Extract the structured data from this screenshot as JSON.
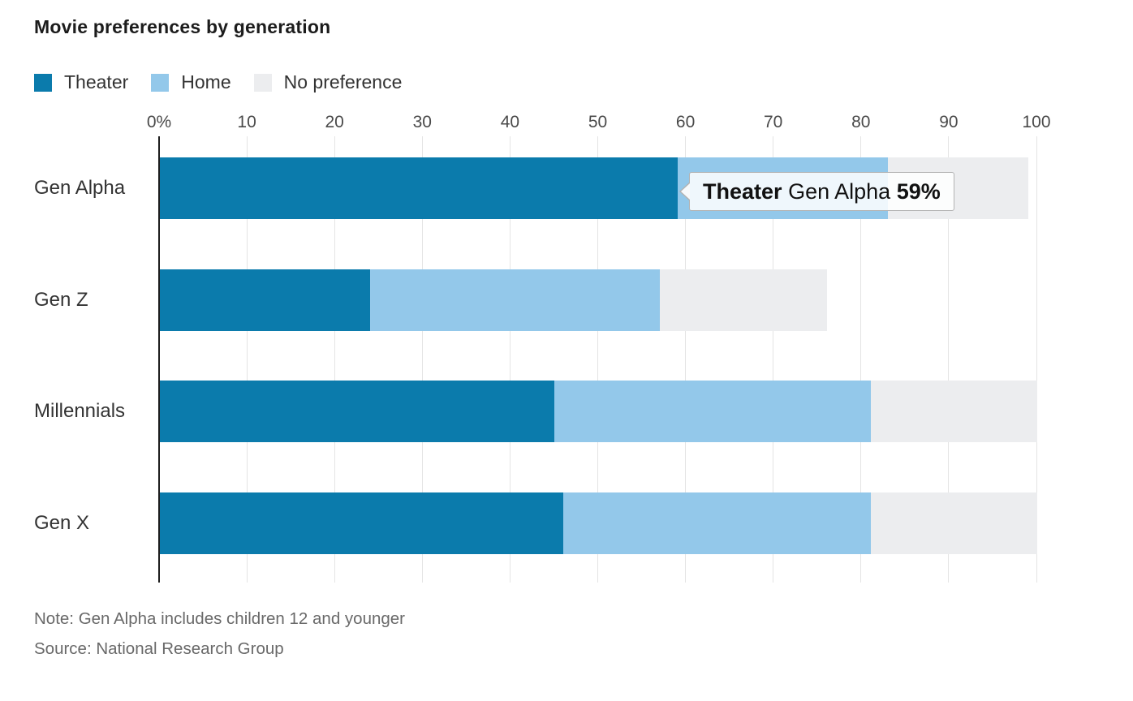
{
  "title": "Movie preferences by generation",
  "colors": {
    "theater": "#0b7bac",
    "home": "#93c8ea",
    "no_preference": "#ecedef",
    "gridline": "#e4e4e4",
    "axis_line": "#1d1d1d"
  },
  "legend": [
    {
      "label": "Theater",
      "color": "#0b7bac"
    },
    {
      "label": "Home",
      "color": "#93c8ea"
    },
    {
      "label": "No preference",
      "color": "#ecedef"
    }
  ],
  "axis": {
    "ticks": [
      {
        "value": 0,
        "label": "0%"
      },
      {
        "value": 10,
        "label": "10"
      },
      {
        "value": 20,
        "label": "20"
      },
      {
        "value": 30,
        "label": "30"
      },
      {
        "value": 40,
        "label": "40"
      },
      {
        "value": 50,
        "label": "50"
      },
      {
        "value": 60,
        "label": "60"
      },
      {
        "value": 70,
        "label": "70"
      },
      {
        "value": 80,
        "label": "80"
      },
      {
        "value": 90,
        "label": "90"
      },
      {
        "value": 100,
        "label": "100"
      }
    ]
  },
  "chart_data": {
    "type": "bar",
    "orientation": "horizontal",
    "stacked": true,
    "title": "Movie preferences by generation",
    "categories": [
      "Gen Alpha",
      "Gen Z",
      "Millennials",
      "Gen X"
    ],
    "series": [
      {
        "name": "Theater",
        "color": "#0b7bac",
        "values": [
          59,
          24,
          45,
          46
        ]
      },
      {
        "name": "Home",
        "color": "#93c8ea",
        "values": [
          24,
          33,
          36,
          35
        ]
      },
      {
        "name": "No preference",
        "color": "#ecedef",
        "values": [
          16,
          19,
          19,
          19
        ]
      }
    ],
    "xlim": [
      0,
      100
    ],
    "x_ticks": [
      0,
      10,
      20,
      30,
      40,
      50,
      60,
      70,
      80,
      90,
      100
    ],
    "legend_position": "top",
    "grid": "vertical"
  },
  "tooltip": {
    "series": "Theater",
    "category": "Gen Alpha",
    "value": "59%"
  },
  "note": "Note: Gen Alpha includes children 12 and younger",
  "source": "Source: National Research Group"
}
